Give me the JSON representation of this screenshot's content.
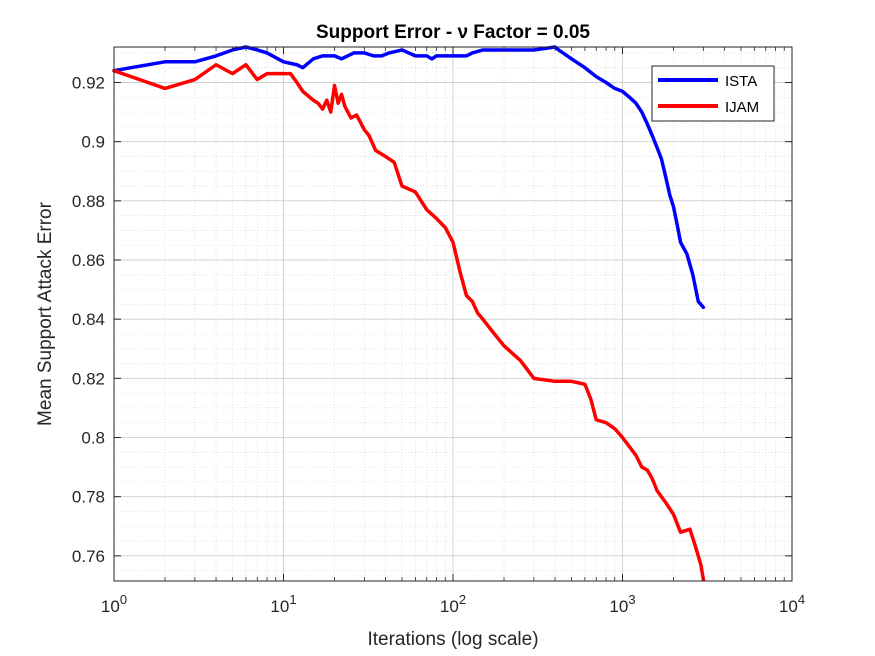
{
  "chart_data": {
    "type": "line",
    "title": "Support Error - ν Factor = 0.05",
    "xlabel": "Iterations (log scale)",
    "ylabel": "Mean Support Attack Error",
    "x_scale": "log",
    "xlim": [
      1,
      10000
    ],
    "ylim": [
      0.7515,
      0.932
    ],
    "x_ticks": [
      {
        "value": 1,
        "base": "10",
        "exp": "0"
      },
      {
        "value": 10,
        "base": "10",
        "exp": "1"
      },
      {
        "value": 100,
        "base": "10",
        "exp": "2"
      },
      {
        "value": 1000,
        "base": "10",
        "exp": "3"
      },
      {
        "value": 10000,
        "base": "10",
        "exp": "4"
      }
    ],
    "y_ticks": [
      {
        "value": 0.76,
        "label": "0.76"
      },
      {
        "value": 0.78,
        "label": "0.78"
      },
      {
        "value": 0.8,
        "label": "0.8"
      },
      {
        "value": 0.82,
        "label": "0.82"
      },
      {
        "value": 0.84,
        "label": "0.84"
      },
      {
        "value": 0.86,
        "label": "0.86"
      },
      {
        "value": 0.88,
        "label": "0.88"
      },
      {
        "value": 0.9,
        "label": "0.9"
      },
      {
        "value": 0.92,
        "label": "0.92"
      }
    ],
    "grid": true,
    "minor_grid": true,
    "legend_position": "top-right",
    "series": [
      {
        "name": "ISTA",
        "color": "#0000ff",
        "x": [
          1,
          2,
          3,
          4,
          5,
          6,
          7,
          8,
          10,
          12,
          13,
          15,
          17,
          20,
          22,
          26,
          30,
          34,
          38,
          42,
          50,
          60,
          70,
          75,
          80,
          100,
          120,
          130,
          150,
          200,
          300,
          400,
          420,
          500,
          600,
          700,
          800,
          900,
          1000,
          1100,
          1200,
          1300,
          1400,
          1500,
          1600,
          1700,
          1800,
          1900,
          2000,
          2100,
          2200,
          2400,
          2600,
          2800,
          3000
        ],
        "y": [
          0.924,
          0.927,
          0.927,
          0.929,
          0.931,
          0.932,
          0.931,
          0.93,
          0.927,
          0.926,
          0.925,
          0.928,
          0.929,
          0.929,
          0.928,
          0.93,
          0.93,
          0.929,
          0.929,
          0.93,
          0.931,
          0.929,
          0.929,
          0.928,
          0.929,
          0.929,
          0.929,
          0.93,
          0.931,
          0.931,
          0.931,
          0.932,
          0.931,
          0.928,
          0.925,
          0.922,
          0.92,
          0.918,
          0.917,
          0.915,
          0.913,
          0.91,
          0.906,
          0.902,
          0.898,
          0.894,
          0.888,
          0.882,
          0.878,
          0.872,
          0.866,
          0.862,
          0.855,
          0.846,
          0.844
        ]
      },
      {
        "name": "IJAM",
        "color": "#ff0000",
        "x": [
          1,
          2,
          3,
          4,
          5,
          6,
          7,
          8,
          10,
          11,
          12,
          13,
          15,
          16,
          17,
          18,
          19,
          20,
          21,
          22,
          23,
          25,
          27,
          30,
          32,
          35,
          40,
          45,
          50,
          60,
          70,
          80,
          90,
          100,
          110,
          120,
          130,
          140,
          150,
          170,
          200,
          250,
          300,
          400,
          500,
          600,
          650,
          700,
          800,
          900,
          1000,
          1200,
          1300,
          1400,
          1500,
          1600,
          1800,
          2000,
          2200,
          2500,
          2700,
          2900,
          3000
        ],
        "y": [
          0.924,
          0.918,
          0.921,
          0.926,
          0.923,
          0.926,
          0.921,
          0.923,
          0.923,
          0.923,
          0.92,
          0.917,
          0.914,
          0.913,
          0.911,
          0.914,
          0.91,
          0.919,
          0.913,
          0.916,
          0.912,
          0.908,
          0.909,
          0.904,
          0.902,
          0.897,
          0.895,
          0.893,
          0.885,
          0.883,
          0.877,
          0.874,
          0.871,
          0.866,
          0.856,
          0.848,
          0.846,
          0.842,
          0.84,
          0.836,
          0.831,
          0.826,
          0.82,
          0.819,
          0.819,
          0.818,
          0.813,
          0.806,
          0.805,
          0.803,
          0.8,
          0.794,
          0.79,
          0.789,
          0.786,
          0.782,
          0.778,
          0.774,
          0.768,
          0.769,
          0.763,
          0.757,
          0.752
        ]
      }
    ]
  }
}
